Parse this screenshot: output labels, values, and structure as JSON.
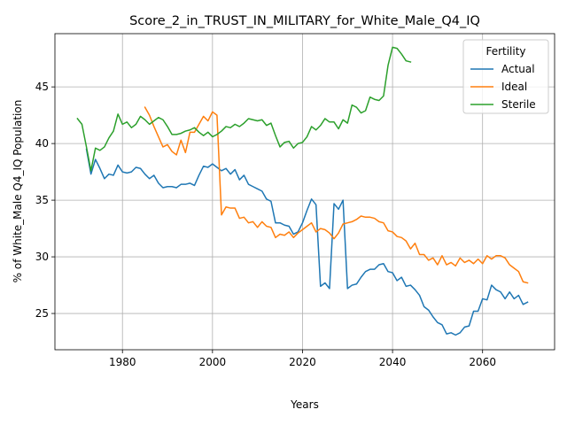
{
  "chart_data": {
    "type": "line",
    "title": "Score_2_in_TRUST_IN_MILITARY_for_White_Male_Q4_IQ",
    "xlabel": "Years",
    "ylabel": "% of White_Male Q4_IQ Population",
    "xlim": [
      1965,
      2076
    ],
    "ylim": [
      21.8,
      49.7
    ],
    "xticks": [
      1980,
      2000,
      2020,
      2040,
      2060
    ],
    "yticks": [
      25,
      30,
      35,
      40,
      45
    ],
    "grid": true,
    "legend": {
      "title": "Fertility",
      "placement": "top-right"
    },
    "series": [
      {
        "name": "Actual",
        "color": "#1f77b4",
        "x": [
          1972,
          1973,
          1974,
          1975,
          1976,
          1977,
          1978,
          1979,
          1980,
          1981,
          1982,
          1983,
          1984,
          1985,
          1986,
          1987,
          1988,
          1989,
          1990,
          1991,
          1992,
          1993,
          1994,
          1995,
          1996,
          1997,
          1998,
          1999,
          2000,
          2001,
          2002,
          2003,
          2004,
          2005,
          2006,
          2007,
          2008,
          2009,
          2010,
          2011,
          2012,
          2013,
          2014,
          2015,
          2016,
          2017,
          2018,
          2019,
          2020,
          2021,
          2022,
          2023,
          2024,
          2025,
          2026,
          2027,
          2028,
          2029,
          2030,
          2031,
          2032,
          2033,
          2034,
          2035,
          2036,
          2037,
          2038,
          2039,
          2040,
          2041,
          2042,
          2043,
          2044,
          2045,
          2046,
          2047,
          2048,
          2049,
          2050,
          2051,
          2052,
          2053,
          2054,
          2055,
          2056,
          2057,
          2058,
          2059,
          2060,
          2061,
          2062,
          2063,
          2064,
          2065,
          2066,
          2067,
          2068,
          2069,
          2070
        ],
        "values": [
          39.5,
          37.3,
          38.6,
          37.8,
          36.9,
          37.3,
          37.2,
          38.1,
          37.5,
          37.4,
          37.5,
          37.9,
          37.8,
          37.3,
          36.9,
          37.2,
          36.5,
          36.1,
          36.2,
          36.2,
          36.1,
          36.4,
          36.4,
          36.5,
          36.3,
          37.2,
          38.0,
          37.9,
          38.2,
          37.9,
          37.6,
          37.8,
          37.3,
          37.7,
          36.8,
          37.2,
          36.4,
          36.2,
          36.0,
          35.8,
          35.1,
          34.9,
          33.0,
          33.0,
          32.8,
          32.7,
          32.0,
          32.2,
          33.0,
          34.1,
          35.1,
          34.6,
          27.4,
          27.7,
          27.2,
          34.7,
          34.2,
          35.0,
          27.2,
          27.5,
          27.6,
          28.2,
          28.7,
          28.9,
          28.9,
          29.3,
          29.4,
          28.7,
          28.6,
          27.9,
          28.2,
          27.4,
          27.5,
          27.1,
          26.6,
          25.6,
          25.3,
          24.7,
          24.2,
          24.0,
          23.2,
          23.3,
          23.1,
          23.3,
          23.8,
          23.9,
          25.2,
          25.2,
          26.3,
          26.2,
          27.5,
          27.1,
          26.9,
          26.3,
          26.9,
          26.3,
          26.6,
          25.8,
          26.0
        ]
      },
      {
        "name": "Ideal",
        "color": "#ff7f0e",
        "x": [
          1985,
          1986,
          1987,
          1988,
          1989,
          1990,
          1991,
          1992,
          1993,
          1994,
          1995,
          1996,
          1997,
          1998,
          1999,
          2000,
          2001,
          2002,
          2003,
          2004,
          2005,
          2006,
          2007,
          2008,
          2009,
          2010,
          2011,
          2012,
          2013,
          2014,
          2015,
          2016,
          2017,
          2018,
          2019,
          2020,
          2021,
          2022,
          2023,
          2024,
          2025,
          2026,
          2027,
          2028,
          2029,
          2030,
          2031,
          2032,
          2033,
          2034,
          2035,
          2036,
          2037,
          2038,
          2039,
          2040,
          2041,
          2042,
          2043,
          2044,
          2045,
          2046,
          2047,
          2048,
          2049,
          2050,
          2051,
          2052,
          2053,
          2054,
          2055,
          2056,
          2057,
          2058,
          2059,
          2060,
          2061,
          2062,
          2063,
          2064,
          2065,
          2066,
          2067,
          2068,
          2069,
          2070
        ],
        "values": [
          43.2,
          42.5,
          41.5,
          40.6,
          39.7,
          39.9,
          39.3,
          39.0,
          40.3,
          39.2,
          41.0,
          41.0,
          41.7,
          42.4,
          42.0,
          42.8,
          42.5,
          33.7,
          34.4,
          34.3,
          34.3,
          33.4,
          33.5,
          33.0,
          33.1,
          32.6,
          33.1,
          32.7,
          32.6,
          31.7,
          32.0,
          31.9,
          32.2,
          31.7,
          32.1,
          32.4,
          32.7,
          33.0,
          32.2,
          32.5,
          32.4,
          32.1,
          31.6,
          32.1,
          32.9,
          33.0,
          33.1,
          33.3,
          33.6,
          33.5,
          33.5,
          33.4,
          33.1,
          33.0,
          32.3,
          32.2,
          31.8,
          31.7,
          31.4,
          30.7,
          31.2,
          30.2,
          30.2,
          29.7,
          29.9,
          29.3,
          30.1,
          29.3,
          29.5,
          29.2,
          29.9,
          29.5,
          29.7,
          29.4,
          29.8,
          29.4,
          30.1,
          29.8,
          30.1,
          30.1,
          29.9,
          29.3,
          29.0,
          28.7,
          27.8,
          27.7
        ]
      },
      {
        "name": "Sterile",
        "color": "#2ca02c",
        "x": [
          1970,
          1971,
          1972,
          1973,
          1974,
          1975,
          1976,
          1977,
          1978,
          1979,
          1980,
          1981,
          1982,
          1983,
          1984,
          1985,
          1986,
          1987,
          1988,
          1989,
          1990,
          1991,
          1992,
          1993,
          1994,
          1995,
          1996,
          1997,
          1998,
          1999,
          2000,
          2001,
          2002,
          2003,
          2004,
          2005,
          2006,
          2007,
          2008,
          2009,
          2010,
          2011,
          2012,
          2013,
          2014,
          2015,
          2016,
          2017,
          2018,
          2019,
          2020,
          2021,
          2022,
          2023,
          2024,
          2025,
          2026,
          2027,
          2028,
          2029,
          2030,
          2031,
          2032,
          2033,
          2034,
          2035,
          2036,
          2037,
          2038,
          2039,
          2040,
          2041,
          2042,
          2043,
          2044
        ],
        "values": [
          42.2,
          41.7,
          39.7,
          37.6,
          39.6,
          39.4,
          39.7,
          40.5,
          41.1,
          42.6,
          41.7,
          41.9,
          41.4,
          41.7,
          42.4,
          42.1,
          41.7,
          42.0,
          42.3,
          42.1,
          41.5,
          40.8,
          40.8,
          40.9,
          41.1,
          41.2,
          41.4,
          41.0,
          40.7,
          41.0,
          40.6,
          40.8,
          41.1,
          41.5,
          41.4,
          41.7,
          41.5,
          41.8,
          42.2,
          42.1,
          42.0,
          42.1,
          41.6,
          41.8,
          40.7,
          39.7,
          40.1,
          40.2,
          39.6,
          40.0,
          40.1,
          40.6,
          41.5,
          41.2,
          41.6,
          42.2,
          41.9,
          41.9,
          41.3,
          42.1,
          41.8,
          43.4,
          43.2,
          42.7,
          42.9,
          44.1,
          43.9,
          43.8,
          44.2,
          46.9,
          48.5,
          48.4,
          47.9,
          47.3,
          47.2
        ]
      }
    ]
  }
}
